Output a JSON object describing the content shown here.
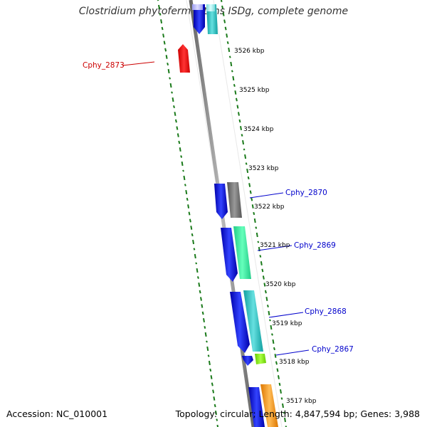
{
  "title": "Clostridium phytofermentans ISDg, complete genome",
  "footer": {
    "accession": "Accession: NC_010001",
    "summary": "Topology: circular; Length: 4,847,594 bp; Genes: 3,988"
  },
  "kbp_labels": [
    "3526 kbp",
    "3525 kbp",
    "3524 kbp",
    "3523 kbp",
    "3522 kbp",
    "3521 kbp",
    "3520 kbp",
    "3519 kbp",
    "3518 kbp",
    "3517 kbp"
  ],
  "gene_labels": [
    {
      "text": "Cphy_2873",
      "color": "#cc0000"
    },
    {
      "text": "Cphy_2870",
      "color": "#0000cc"
    },
    {
      "text": "Cphy_2869",
      "color": "#0000cc"
    },
    {
      "text": "Cphy_2868",
      "color": "#0000cc"
    },
    {
      "text": "Cphy_2867",
      "color": "#0000cc"
    }
  ],
  "colors": {
    "backbone": "#888888",
    "gc_ticks": "#1a7a1a",
    "cds": "#1a1aee",
    "highlight_cds": "#ee1111"
  }
}
